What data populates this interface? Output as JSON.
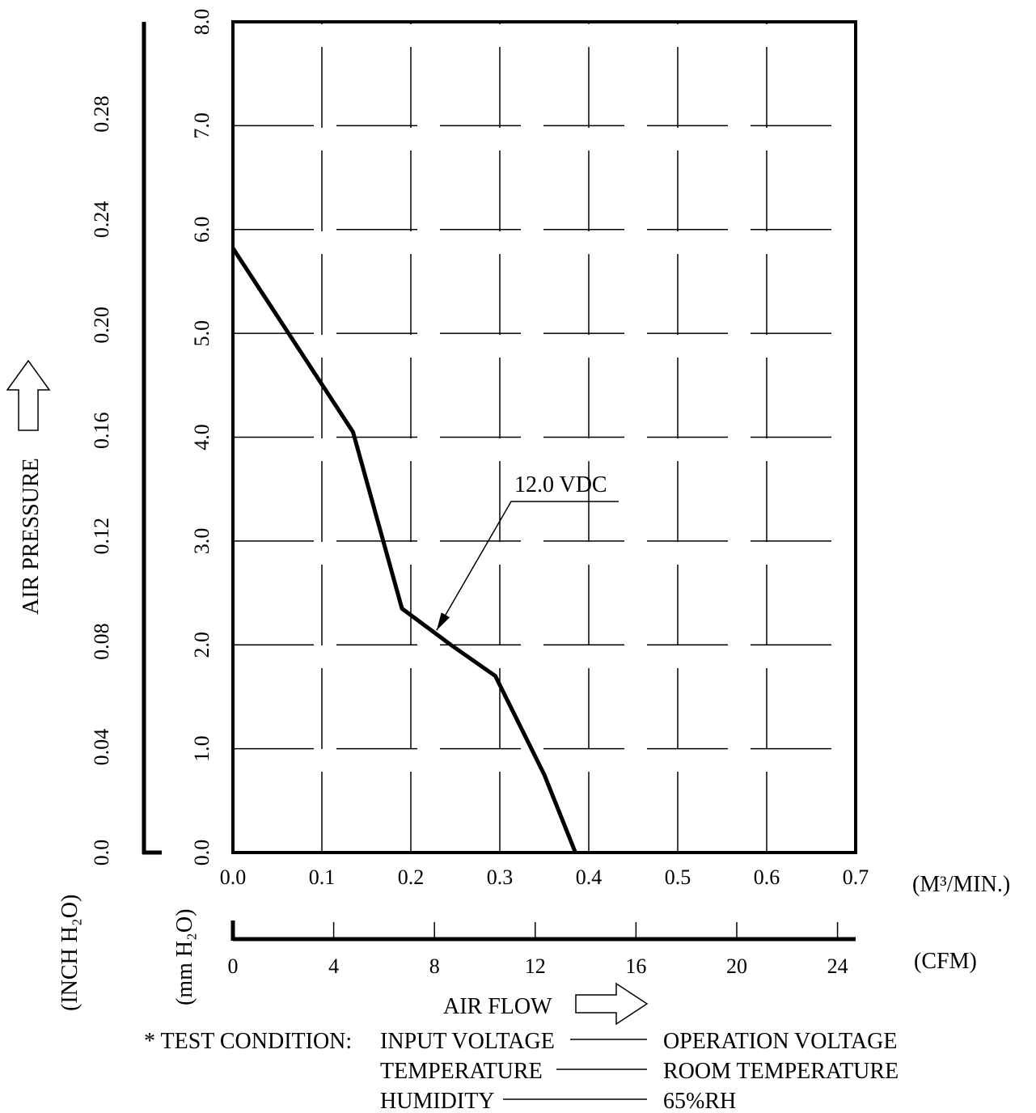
{
  "chart_data": {
    "type": "line",
    "title": "",
    "xlabel": "AIR FLOW",
    "ylabel": "AIR PRESSURE",
    "x_unit_primary": "(M³/MIN.)",
    "x_unit_secondary": "(CFM)",
    "y_unit_primary": "(mm H₂O)",
    "y_unit_secondary": "(INCH H₂O)",
    "xlim": [
      0.0,
      0.7
    ],
    "ylim": [
      0.0,
      8.0
    ],
    "x_ticks": [
      "0.0",
      "0.1",
      "0.2",
      "0.3",
      "0.4",
      "0.5",
      "0.6",
      "0.7"
    ],
    "y_ticks": [
      "0.0",
      "1.0",
      "2.0",
      "3.0",
      "4.0",
      "5.0",
      "6.0",
      "7.0",
      "8.0"
    ],
    "cfm_ticks": [
      "0",
      "4",
      "8",
      "12",
      "16",
      "20",
      "24"
    ],
    "inch_ticks": [
      "0.0",
      "0.04",
      "0.08",
      "0.12",
      "0.16",
      "0.20",
      "0.24",
      "0.28"
    ],
    "grid": true,
    "series": [
      {
        "name": "12.0 VDC",
        "x": [
          0.0,
          0.135,
          0.19,
          0.245,
          0.295,
          0.35,
          0.385
        ],
        "y": [
          5.82,
          4.05,
          2.35,
          2.0,
          1.7,
          0.75,
          0.0
        ]
      }
    ],
    "annotations": [
      {
        "text": "12.0 VDC",
        "x": 0.229,
        "y": 2.14
      }
    ]
  },
  "test_condition": {
    "title": "* TEST CONDITION:",
    "rows": [
      {
        "label": "INPUT VOLTAGE",
        "value": "OPERATION VOLTAGE"
      },
      {
        "label": "TEMPERATURE",
        "value": "ROOM TEMPERATURE"
      },
      {
        "label": "HUMIDITY",
        "value": "65%RH"
      }
    ]
  }
}
